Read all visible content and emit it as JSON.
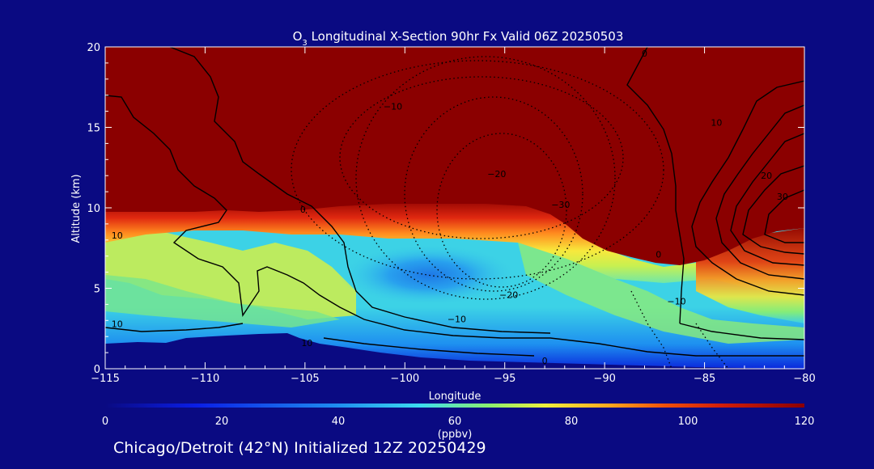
{
  "colors": {
    "background": "#0a0a82",
    "text": "#ffffff",
    "contour": "#000000"
  },
  "chart_data": {
    "type": "heatmap",
    "title": "O3 Longitudinal X-Section 90hr  Fx Valid 06Z 20250503",
    "title_parts": {
      "pre": "O",
      "sub": "3",
      "post": " Longitudinal X-Section 90hr  Fx Valid 06Z 20250503"
    },
    "xlabel": "Longitude",
    "ylabel": "Altitude (km)",
    "xlim": [
      -115,
      -80
    ],
    "ylim": [
      0,
      20
    ],
    "x_ticks": [
      -115,
      -110,
      -105,
      -100,
      -95,
      -90,
      -85,
      -80
    ],
    "x_tick_labels": [
      "−115",
      "−110",
      "−105",
      "−100",
      "−95",
      "−90",
      "−85",
      "−80"
    ],
    "y_ticks": [
      0,
      5,
      10,
      15,
      20
    ],
    "y_tick_labels": [
      "0",
      "5",
      "10",
      "15",
      "20"
    ],
    "colorbar": {
      "label": "(ppbv)",
      "range": [
        0,
        120
      ],
      "ticks": [
        0,
        20,
        40,
        60,
        80,
        100,
        120
      ],
      "tick_labels": [
        "0",
        "20",
        "40",
        "60",
        "80",
        "100",
        "120"
      ]
    },
    "contour_labels": [
      {
        "text": "0",
        "x": -88.0,
        "y": 19.6
      },
      {
        "text": "−10",
        "x": -100.6,
        "y": 16.3
      },
      {
        "text": "−20",
        "x": -95.4,
        "y": 12.1
      },
      {
        "text": "−30",
        "x": -92.2,
        "y": 10.2
      },
      {
        "text": "−20",
        "x": -94.8,
        "y": 4.6
      },
      {
        "text": "−10",
        "x": -97.4,
        "y": 3.1
      },
      {
        "text": "0",
        "x": -105.1,
        "y": 9.9
      },
      {
        "text": "−10",
        "x": -86.4,
        "y": 4.2
      },
      {
        "text": "0",
        "x": -87.3,
        "y": 7.1
      },
      {
        "text": "10",
        "x": -84.4,
        "y": 15.3
      },
      {
        "text": "20",
        "x": -81.9,
        "y": 12.0
      },
      {
        "text": "30",
        "x": -81.1,
        "y": 10.7
      },
      {
        "text": "10",
        "x": -114.4,
        "y": 8.3
      },
      {
        "text": "10",
        "x": -114.4,
        "y": 2.8
      },
      {
        "text": "10",
        "x": -104.9,
        "y": 1.6
      },
      {
        "text": "0",
        "x": -93.0,
        "y": 0.5
      }
    ],
    "footer": "Chicago/Detroit (42°N) Initialized 12Z 20250429"
  }
}
